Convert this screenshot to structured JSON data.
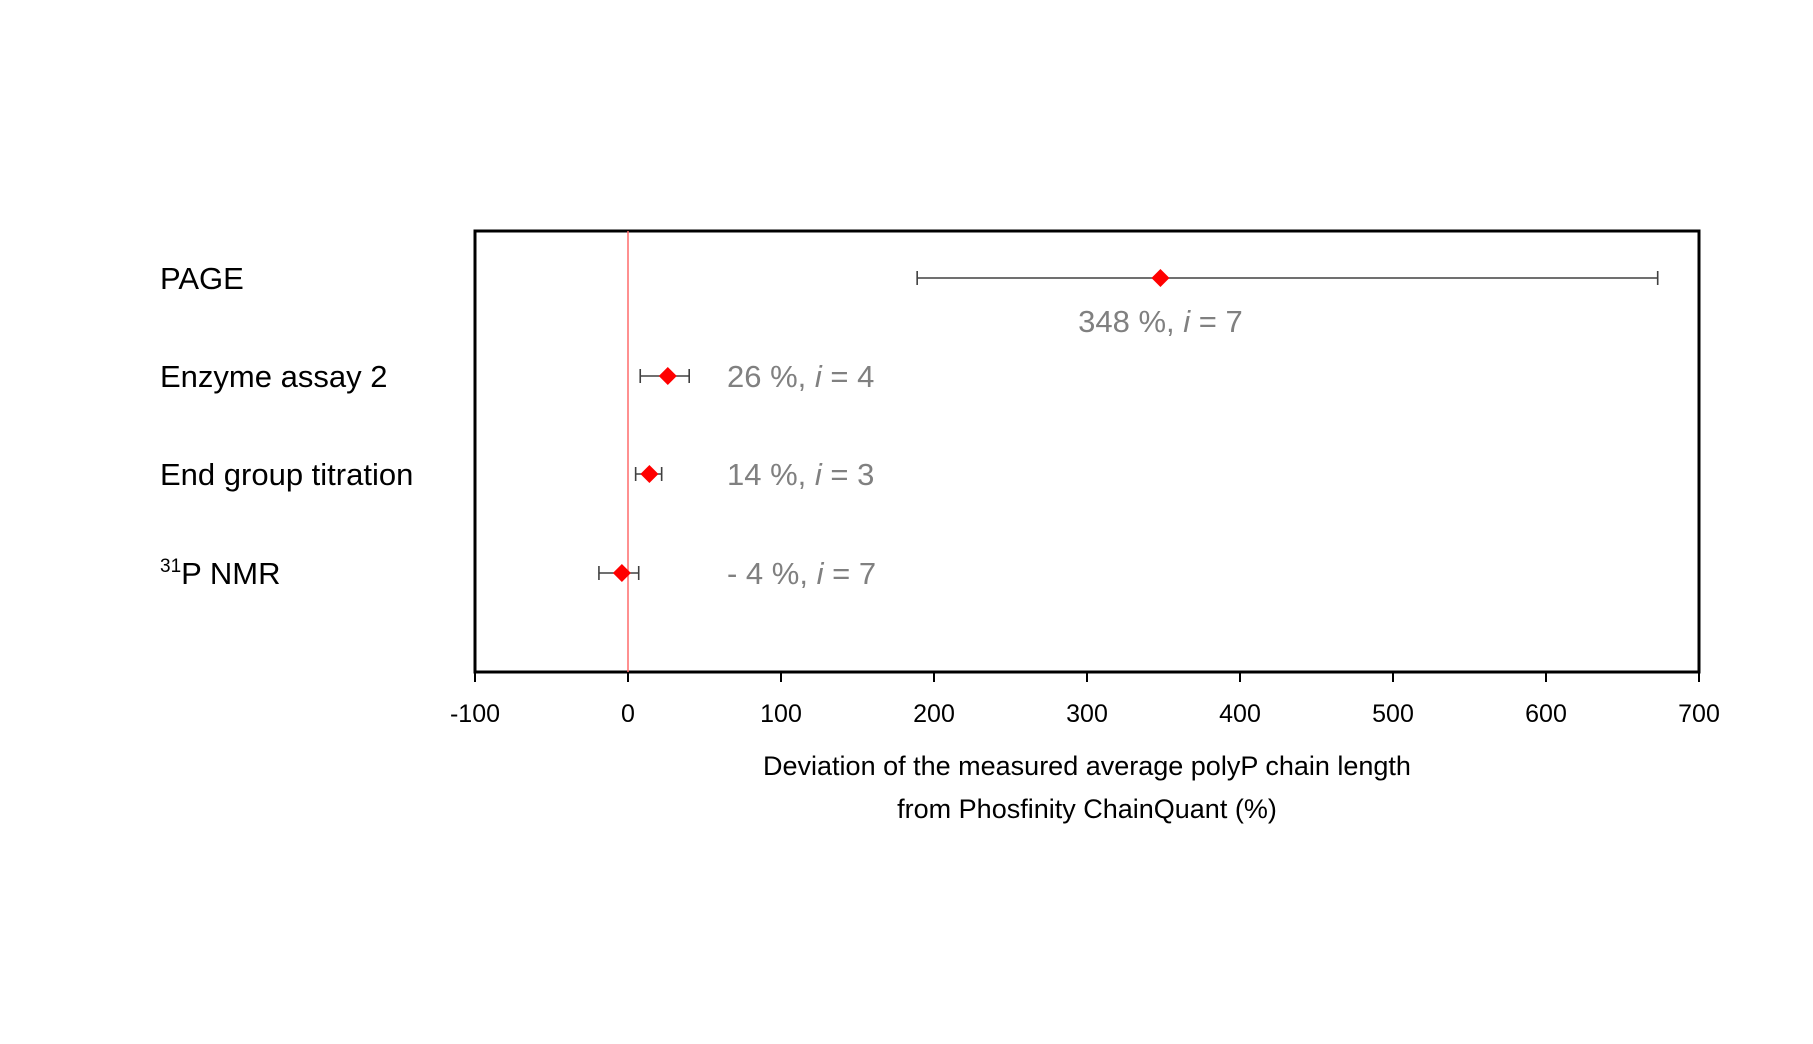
{
  "chart_data": {
    "type": "scatter",
    "orientation": "horizontal",
    "xlabel_line1": "Deviation of the measured average polyP chain length",
    "xlabel_line2": "from Phosfinity ChainQuant (%)",
    "xlim": [
      -100,
      700
    ],
    "xticks": [
      -100,
      0,
      100,
      200,
      300,
      400,
      500,
      600,
      700
    ],
    "grid": false,
    "reference_line_x": 0,
    "colors": {
      "marker": "#ff0000",
      "reference_line": "#ff6b6b",
      "error_bar": "#404040",
      "annotation": "#808080"
    },
    "categories": [
      {
        "label": "PAGE",
        "superscript": "",
        "value": 348,
        "err_low": 189,
        "err_high": 673,
        "annotation_value": "348 %, ",
        "annotation_i": "i",
        "annotation_n": " = 7",
        "annotation_position": "below"
      },
      {
        "label": "Enzyme assay 2",
        "superscript": "",
        "value": 26,
        "err_low": 8,
        "err_high": 40,
        "annotation_value": "26 %, ",
        "annotation_i": "i",
        "annotation_n": " = 4",
        "annotation_position": "right"
      },
      {
        "label": "End group titration",
        "superscript": "",
        "value": 14,
        "err_low": 5,
        "err_high": 22,
        "annotation_value": "14 %, ",
        "annotation_i": "i",
        "annotation_n": " = 3",
        "annotation_position": "right"
      },
      {
        "label": "P NMR",
        "superscript": "31",
        "value": -4,
        "err_low": -19,
        "err_high": 7,
        "annotation_value": "- 4 %, ",
        "annotation_i": "i",
        "annotation_n": " = 7",
        "annotation_position": "right"
      }
    ]
  }
}
